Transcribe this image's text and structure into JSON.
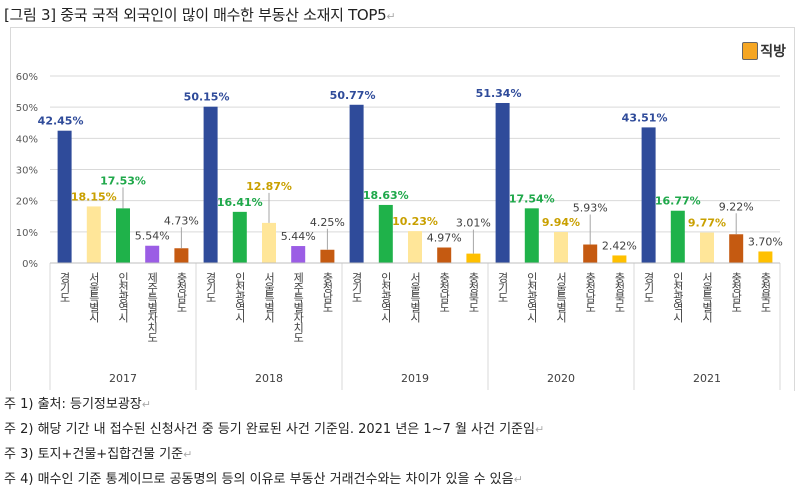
{
  "document": {
    "title": "[그림 3] 중국 국적 외국인이 많이 매수한 부동산 소재지 TOP5",
    "logo_text": "직방",
    "notes": [
      "주 1) 출처: 등기정보광장",
      "주 2) 해당 기간 내 접수된 신청사건 중 등기 완료된 사건 기준임. 2021 년은 1~7 월 사건 기준임",
      "주 3) 토지+건물+집합건물 기준",
      "주 4) 매수인 기준 통계이므로 공동명의 등의 이유로 부동산 거래건수와는 차이가 있을 수 있음"
    ]
  },
  "chart_data": {
    "type": "bar",
    "title": "",
    "xlabel": "",
    "ylabel": "",
    "ylim": [
      0,
      60
    ],
    "yticks": [
      "0%",
      "10%",
      "20%",
      "30%",
      "40%",
      "50%",
      "60%"
    ],
    "grid": true,
    "legend": "none",
    "region_colors": {
      "경기도": "#2f4b9a",
      "서울특별시": "#ffe699",
      "인천광역시": "#1fb24a",
      "제주특별자치도": "#9b5de5",
      "충청남도": "#c55a11",
      "충청북도": "#ffc000"
    },
    "label_colors": {
      "경기도": "#2f4b9a",
      "서울특별시": "#c9a000",
      "인천광역시": "#1fa84a",
      "default": "#404040"
    },
    "groups": [
      {
        "year": "2017",
        "bars": [
          {
            "region": "경기도",
            "value": 42.45,
            "label": "42.45%"
          },
          {
            "region": "서울특별시",
            "value": 18.15,
            "label": "18.15%"
          },
          {
            "region": "인천광역시",
            "value": 17.53,
            "label": "17.53%"
          },
          {
            "region": "제주특별자치도",
            "value": 5.54,
            "label": "5.54%"
          },
          {
            "region": "충청남도",
            "value": 4.73,
            "label": "4.73%"
          }
        ]
      },
      {
        "year": "2018",
        "bars": [
          {
            "region": "경기도",
            "value": 50.15,
            "label": "50.15%"
          },
          {
            "region": "인천광역시",
            "value": 16.41,
            "label": "16.41%"
          },
          {
            "region": "서울특별시",
            "value": 12.87,
            "label": "12.87%"
          },
          {
            "region": "제주특별자치도",
            "value": 5.44,
            "label": "5.44%"
          },
          {
            "region": "충청남도",
            "value": 4.25,
            "label": "4.25%"
          }
        ]
      },
      {
        "year": "2019",
        "bars": [
          {
            "region": "경기도",
            "value": 50.77,
            "label": "50.77%"
          },
          {
            "region": "인천광역시",
            "value": 18.63,
            "label": "18.63%"
          },
          {
            "region": "서울특별시",
            "value": 10.23,
            "label": "10.23%"
          },
          {
            "region": "충청남도",
            "value": 4.97,
            "label": "4.97%"
          },
          {
            "region": "충청북도",
            "value": 3.01,
            "label": "3.01%"
          }
        ]
      },
      {
        "year": "2020",
        "bars": [
          {
            "region": "경기도",
            "value": 51.34,
            "label": "51.34%"
          },
          {
            "region": "인천광역시",
            "value": 17.54,
            "label": "17.54%"
          },
          {
            "region": "서울특별시",
            "value": 9.94,
            "label": "9.94%"
          },
          {
            "region": "충청남도",
            "value": 5.93,
            "label": "5.93%"
          },
          {
            "region": "충청북도",
            "value": 2.42,
            "label": "2.42%"
          }
        ]
      },
      {
        "year": "2021",
        "bars": [
          {
            "region": "경기도",
            "value": 43.51,
            "label": "43.51%"
          },
          {
            "region": "인천광역시",
            "value": 16.77,
            "label": "16.77%"
          },
          {
            "region": "서울특별시",
            "value": 9.77,
            "label": "9.77%"
          },
          {
            "region": "충청남도",
            "value": 9.22,
            "label": "9.22%"
          },
          {
            "region": "충청북도",
            "value": 3.7,
            "label": "3.70%"
          }
        ]
      }
    ]
  }
}
